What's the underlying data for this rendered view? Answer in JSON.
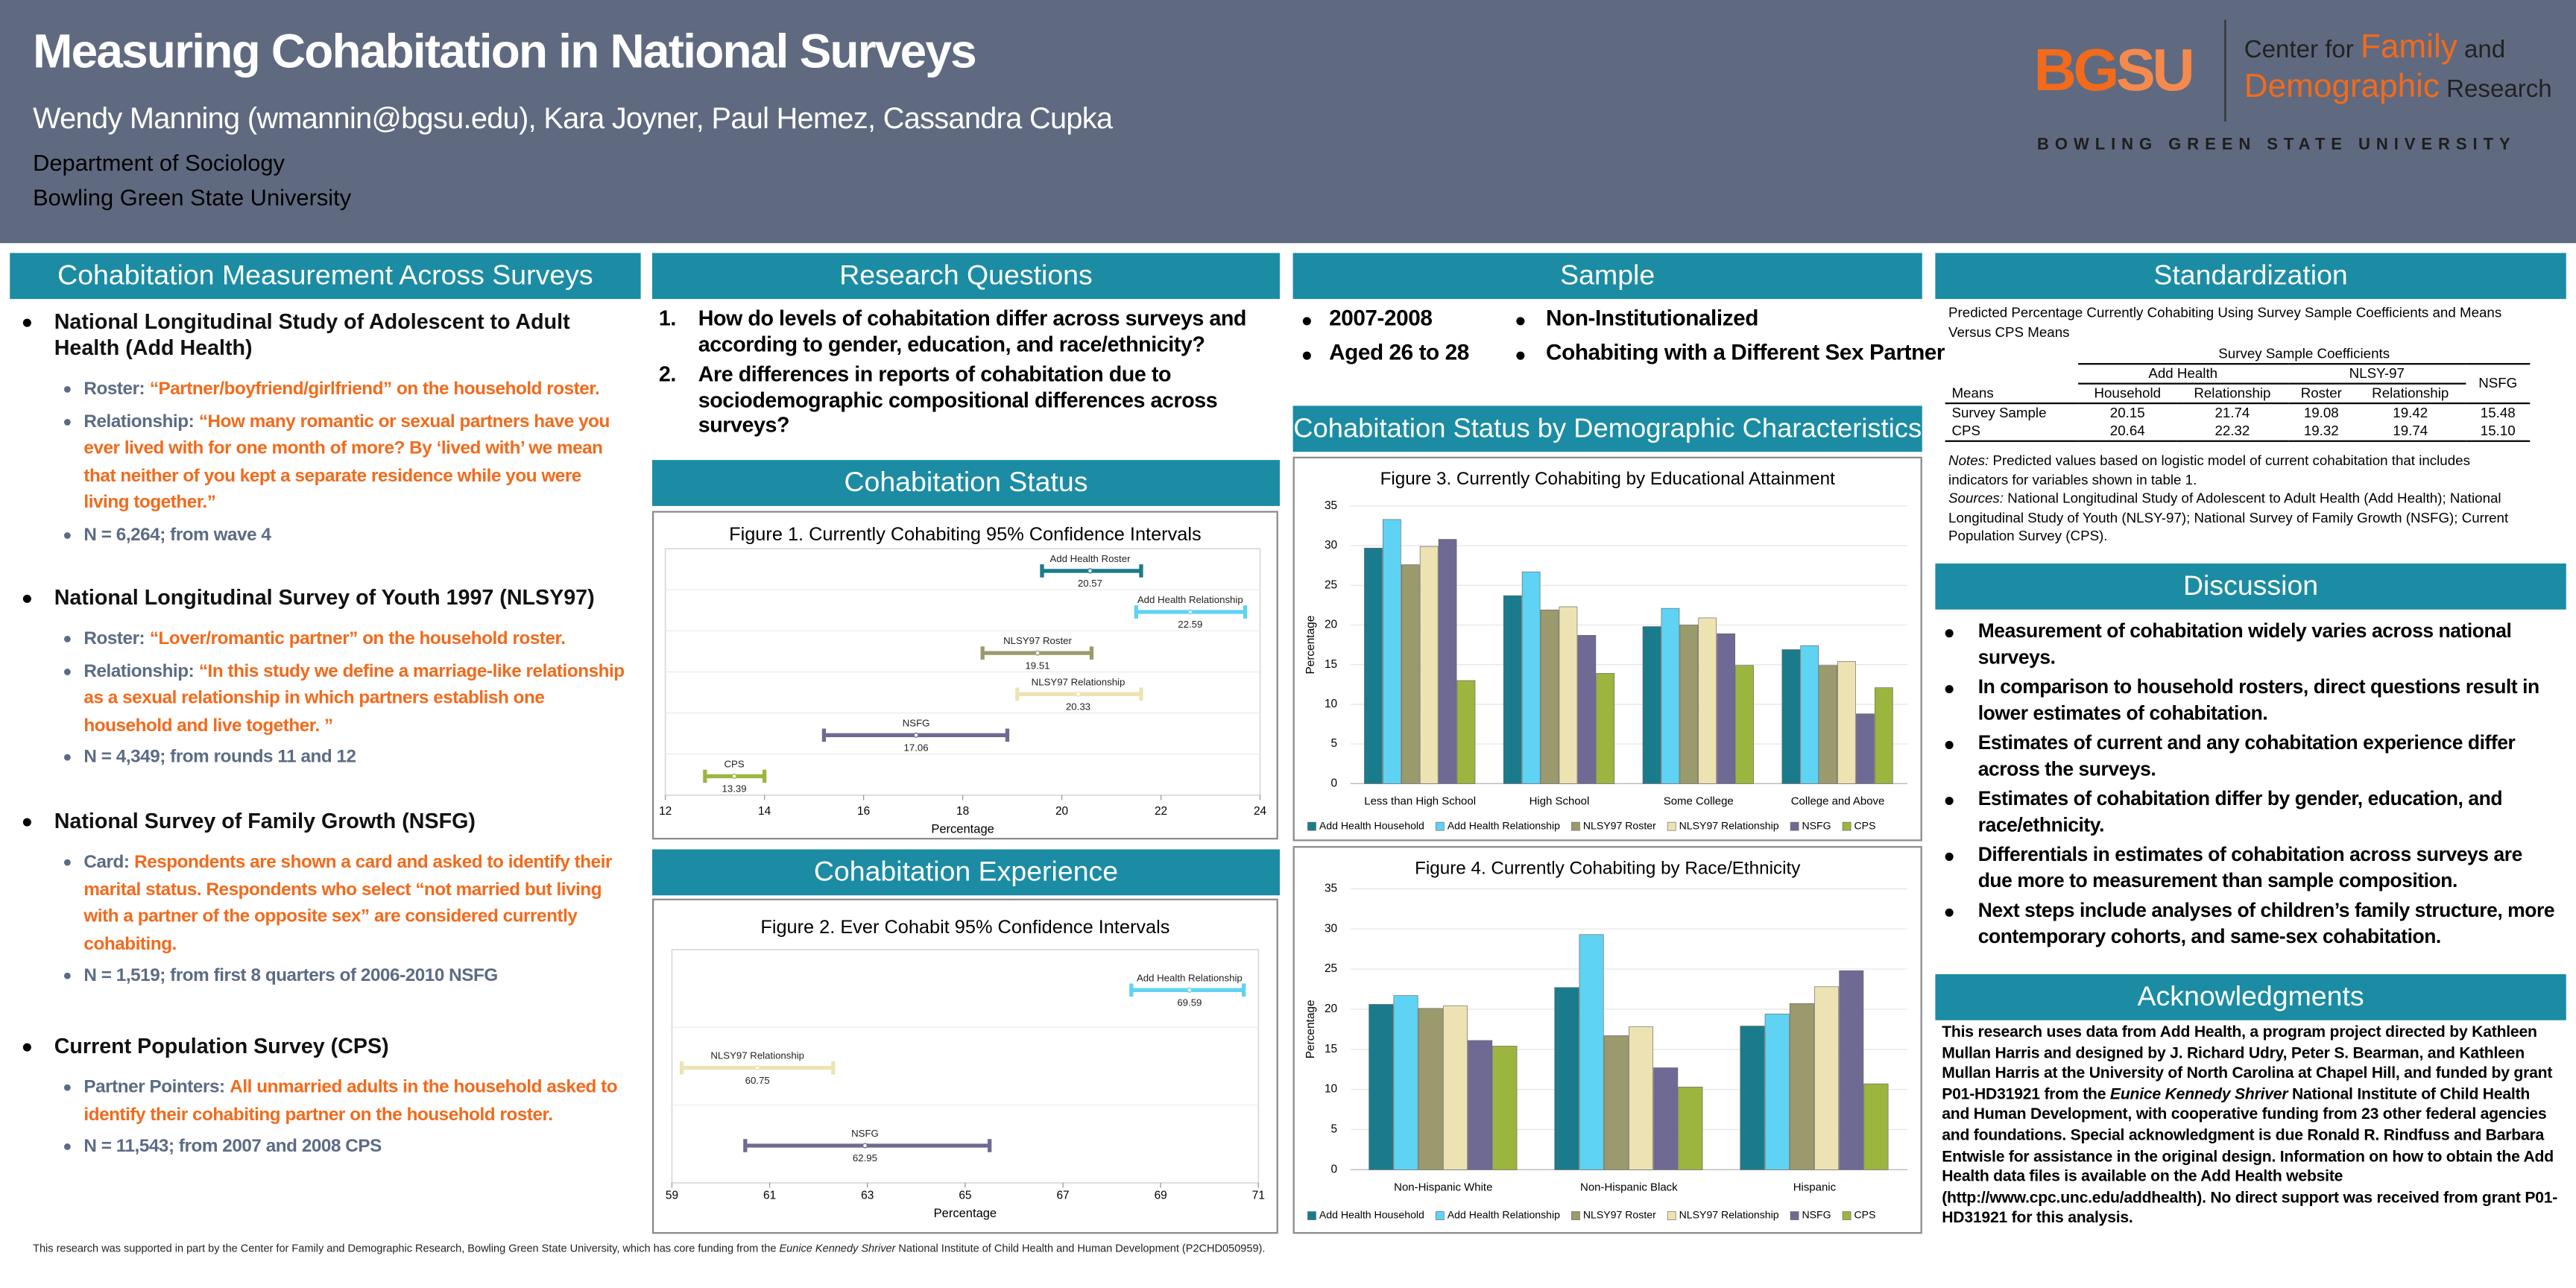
{
  "header": {
    "title": "Measuring Cohabitation in National Surveys",
    "authors": "Wendy Manning (wmannin@bgsu.edu), Kara Joyner, Paul Hemez, Cassandra Cupka",
    "department": "Department of Sociology",
    "university": "Bowling Green State University"
  },
  "logo": {
    "bg": "BG",
    "su": "SU",
    "center_for": "Center for",
    "family": "Family",
    "and": "and",
    "demographic": "Demographic",
    "research": "Research",
    "university": "BOWLING GREEN STATE UNIVERSITY"
  },
  "measurement": {
    "heading": "Cohabitation Measurement Across Surveys",
    "surveys": [
      {
        "name": "National Longitudinal Study of Adolescent to Adult Health (Add Health)",
        "items": [
          {
            "label": "Roster:",
            "text": "“Partner/boyfriend/girlfriend” on the household roster."
          },
          {
            "label": "Relationship:",
            "text": "“How many romantic or sexual partners have you ever lived with for one month of more? By ‘lived with’ we mean that neither of you kept  a separate residence while you were living together.”"
          }
        ],
        "n": "N = 6,264; from wave 4"
      },
      {
        "name": "National Longitudinal Survey of Youth 1997 (NLSY97)",
        "items": [
          {
            "label": "Roster:",
            "text": "“Lover/romantic partner” on the household roster."
          },
          {
            "label": "Relationship:",
            "text": "“In this study we define a marriage-like relationship as a sexual relationship in which partners establish one household and live together. ”"
          }
        ],
        "n": "N = 4,349; from rounds 11 and 12"
      },
      {
        "name": "National Survey of Family Growth (NSFG)",
        "items": [
          {
            "label": "Card:",
            "text": "Respondents are shown a card and asked to identify their marital status. Respondents who select “not married but living with a partner of the opposite sex” are considered currently cohabiting."
          }
        ],
        "n": "N = 1,519; from first 8 quarters of 2006-2010 NSFG"
      },
      {
        "name": "Current Population Survey (CPS)",
        "items": [
          {
            "label": "Partner Pointers:",
            "text": "All unmarried adults in the household asked to identify their cohabiting partner on the household roster."
          }
        ],
        "n": "N = 11,543; from 2007 and 2008 CPS"
      }
    ]
  },
  "research_questions": {
    "heading": "Research Questions",
    "items": [
      {
        "number": "1.",
        "text": "How do levels of cohabitation differ across surveys and according to gender, education, and race/ethnicity?"
      },
      {
        "number": "2.",
        "text": "Are differences in reports of cohabitation due to sociodemographic compositional differences across surveys?"
      }
    ]
  },
  "cohabitation_status": {
    "heading": "Cohabitation Status"
  },
  "cohabitation_experience": {
    "heading": "Cohabitation Experience"
  },
  "sample": {
    "heading": "Sample",
    "left": [
      "2007-2008",
      "Aged 26 to 28"
    ],
    "right": [
      "Non-Institutionalized",
      "Cohabiting with a Different Sex Partner"
    ]
  },
  "demographic": {
    "heading": "Cohabitation Status by Demographic Characteristics"
  },
  "standardization": {
    "heading": "Standardization",
    "caption": "Predicted Percentage Currently Cohabiting Using Survey Sample Coefficients and Means Versus CPS Means",
    "super_header": "Survey Sample Coefficients",
    "groups": [
      "Add Health",
      "NLSY-97"
    ],
    "nsfg": "NSFG",
    "row_header": "Means",
    "subheaders": [
      "Household",
      "Relationship",
      "Roster",
      "Relationship"
    ],
    "rows": [
      [
        "Survey Sample",
        "20.15",
        "21.74",
        "19.08",
        "19.42",
        "15.48"
      ],
      [
        "CPS",
        "20.64",
        "22.32",
        "19.32",
        "19.74",
        "15.10"
      ]
    ],
    "notes_label": "Notes:",
    "notes": "Predicted values based on logistic model of current cohabitation that includes indicators for variables shown in table 1.",
    "sources_label": "Sources:",
    "sources": "National Longitudinal Study of Adolescent to Adult Health (Add Health); National Longitudinal Study of Youth (NLSY-97); National Survey of Family Growth (NSFG); Current Population Survey (CPS)."
  },
  "discussion": {
    "heading": "Discussion",
    "items": [
      "Measurement of cohabitation widely varies across national surveys.",
      "In comparison to household rosters, direct questions result in lower estimates of cohabitation.",
      "Estimates of current and any cohabitation experience differ across the surveys.",
      "Estimates of cohabitation differ by gender, education, and race/ethnicity.",
      "Differentials in estimates of cohabitation across surveys are due more to measurement than sample composition.",
      "Next steps include analyses of children’s family structure, more contemporary cohorts, and same-sex cohabitation."
    ]
  },
  "acknowledgments": {
    "heading": "Acknowledgments",
    "parts": [
      "This research uses data from Add Health, a program project directed by Kathleen Mullan Harris and designed by J. Richard Udry, Peter S. Bearman, and Kathleen Mullan Harris at the University of North Carolina at Chapel Hill, and funded by grant P01-HD31921 from the ",
      "Eunice Kennedy Shriver",
      " National Institute of Child Health and Human Development, with cooperative funding from 23 other federal agencies and foundations. Special acknowledgment is due Ronald R. Rindfuss and Barbara Entwisle for assistance in the original design. Information on how to obtain the Add Health data files is available on the Add Health website (http://www.cpc.unc.edu/addhealth). No direct support was received from grant P01-HD31921 for this analysis."
    ]
  },
  "footer": {
    "parts": [
      "This research was supported in part by the Center for Family and Demographic Research, Bowling Green State University, which has core funding from the ",
      "Eunice Kennedy Shriver",
      " National Institute of Child Health and Human Development (P2CHD050959)."
    ]
  },
  "chart_data": [
    {
      "type": "interval",
      "title": "Figure 1. Currently Cohabiting 95% Confidence Intervals",
      "x_label": "Percentage",
      "categories": [
        "Add Health Roster",
        "Add Health Relationship",
        "NLSY97 Roster",
        "NLSY97 Relationship",
        "NSFG",
        "CPS"
      ],
      "values": [
        20.57,
        22.59,
        19.51,
        20.33,
        17.06,
        13.39
      ],
      "ci_low": [
        19.6,
        21.5,
        18.4,
        19.1,
        15.2,
        12.8
      ],
      "ci_high": [
        21.6,
        23.7,
        20.6,
        21.6,
        18.9,
        14.0
      ],
      "colors": [
        "#1a7b8c",
        "#5fd3f3",
        "#9b9a6c",
        "#ede3b2",
        "#6e6a94",
        "#9bb53f"
      ],
      "xlim": [
        12,
        24
      ],
      "xticks": [
        12,
        14,
        16,
        18,
        20,
        22,
        24
      ]
    },
    {
      "type": "interval",
      "title": "Figure 2. Ever Cohabit 95% Confidence Intervals",
      "x_label": "Percentage",
      "categories": [
        "Add Health Relationship",
        "NLSY97 Relationship",
        "NSFG"
      ],
      "values": [
        69.59,
        60.75,
        62.95
      ],
      "ci_low": [
        68.4,
        59.2,
        60.5
      ],
      "ci_high": [
        70.7,
        62.3,
        65.5
      ],
      "colors": [
        "#5fd3f3",
        "#ede3b2",
        "#6e6a94"
      ],
      "xlim": [
        59,
        71
      ],
      "xticks": [
        59,
        61,
        63,
        65,
        67,
        69,
        71
      ]
    },
    {
      "type": "bar",
      "title": "Figure 3. Currently Cohabiting by Educational Attainment",
      "y_label": "Percentage",
      "categories": [
        "Less than High School",
        "High School",
        "Some College",
        "College and Above"
      ],
      "series": [
        {
          "name": "Add Health Household",
          "color": "#1a7b8c",
          "values": [
            29.7,
            23.7,
            19.8,
            16.9
          ]
        },
        {
          "name": "Add Health Relationship",
          "color": "#5fd3f3",
          "values": [
            33.3,
            26.7,
            22.1,
            17.4
          ]
        },
        {
          "name": "NLSY97 Roster",
          "color": "#9b9a6c",
          "values": [
            27.6,
            21.9,
            20.0,
            14.9
          ]
        },
        {
          "name": "NLSY97 Relationship",
          "color": "#ede3b2",
          "values": [
            29.9,
            22.3,
            20.9,
            15.4
          ]
        },
        {
          "name": "NSFG",
          "color": "#6e6a94",
          "values": [
            30.8,
            18.7,
            18.9,
            8.8
          ]
        },
        {
          "name": "CPS",
          "color": "#9bb53f",
          "values": [
            13.0,
            13.9,
            14.9,
            12.1
          ]
        }
      ],
      "ylim": [
        0,
        35
      ],
      "yticks": [
        0,
        5,
        10,
        15,
        20,
        25,
        30,
        35
      ],
      "grid": true,
      "legend": "bottom"
    },
    {
      "type": "bar",
      "title": "Figure 4. Currently Cohabiting by Race/Ethnicity",
      "y_label": "Percentage",
      "categories": [
        "Non-Hispanic White",
        "Non-Hispanic Black",
        "Hispanic"
      ],
      "series": [
        {
          "name": "Add Health Household",
          "color": "#1a7b8c",
          "values": [
            20.6,
            22.7,
            17.9
          ]
        },
        {
          "name": "Add Health Relationship",
          "color": "#5fd3f3",
          "values": [
            21.7,
            29.3,
            19.4
          ]
        },
        {
          "name": "NLSY97 Roster",
          "color": "#9b9a6c",
          "values": [
            20.1,
            16.7,
            20.7
          ]
        },
        {
          "name": "NLSY97 Relationship",
          "color": "#ede3b2",
          "values": [
            20.4,
            17.8,
            22.8
          ]
        },
        {
          "name": "NSFG",
          "color": "#6e6a94",
          "values": [
            16.1,
            12.7,
            24.8
          ]
        },
        {
          "name": "CPS",
          "color": "#9bb53f",
          "values": [
            15.4,
            10.3,
            10.7
          ]
        }
      ],
      "ylim": [
        0,
        35
      ],
      "yticks": [
        0,
        5,
        10,
        15,
        20,
        25,
        30,
        35
      ],
      "grid": true,
      "legend": "bottom"
    }
  ]
}
